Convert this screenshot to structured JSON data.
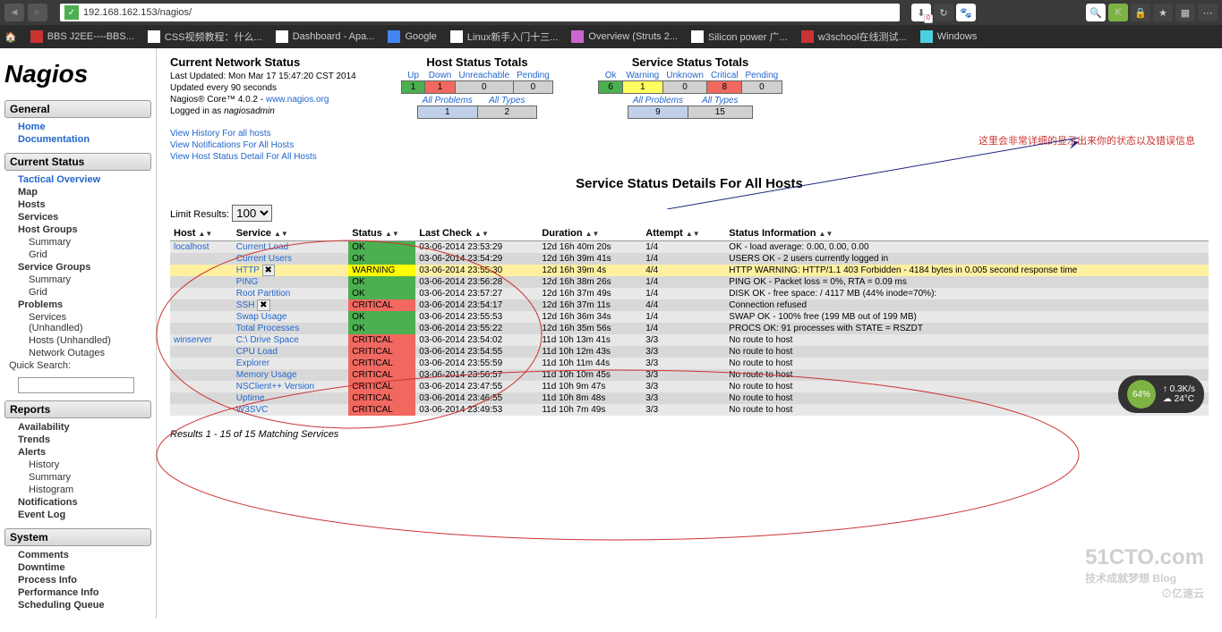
{
  "browser": {
    "url": "192.168.162.153/nagios/"
  },
  "bookmarks": [
    {
      "label": "BBS J2EE----BBS...",
      "color": "#cc3333"
    },
    {
      "label": "CSS视频教程：什么...",
      "color": "#fff"
    },
    {
      "label": "Dashboard - Apa...",
      "color": "#fff"
    },
    {
      "label": "Google",
      "color": "#4285f4"
    },
    {
      "label": "Linux新手入门十三...",
      "color": "#fff"
    },
    {
      "label": "Overview (Struts 2...",
      "color": "#cc66cc"
    },
    {
      "label": "Silicon power 广...",
      "color": "#fff"
    },
    {
      "label": "w3school在线测试...",
      "color": "#cc3333"
    },
    {
      "label": "Windows",
      "color": "#4dd0e1"
    }
  ],
  "logo": "Nagios",
  "sidebar": {
    "general": {
      "title": "General",
      "items": [
        "Home",
        "Documentation"
      ]
    },
    "current": {
      "title": "Current Status",
      "items": [
        "Tactical Overview",
        "Map",
        "Hosts",
        "Services",
        "Host Groups"
      ],
      "hg_sub": [
        "Summary",
        "Grid"
      ],
      "sg": "Service Groups",
      "sg_sub": [
        "Summary",
        "Grid"
      ],
      "problems": "Problems",
      "p_sub": [
        "Services (Unhandled)",
        "Hosts (Unhandled)",
        "Network Outages"
      ],
      "search": "Quick Search:"
    },
    "reports": {
      "title": "Reports",
      "items": [
        "Availability",
        "Trends",
        "Alerts"
      ],
      "a_sub": [
        "History",
        "Summary",
        "Histogram"
      ],
      "items2": [
        "Notifications",
        "Event Log"
      ]
    },
    "system": {
      "title": "System",
      "items": [
        "Comments",
        "Downtime",
        "Process Info",
        "Performance Info",
        "Scheduling Queue"
      ]
    }
  },
  "status": {
    "title": "Current Network Status",
    "updated": "Last Updated: Mon Mar 17 15:47:20 CST 2014",
    "interval": "Updated every 90 seconds",
    "version": "Nagios® Core™ 4.0.2 - ",
    "link": "www.nagios.org",
    "logged": "Logged in as ",
    "user": "nagiosadmin",
    "history": "View History For all hosts",
    "notif": "View Notifications For All Hosts",
    "detail": "View Host Status Detail For All Hosts"
  },
  "host_totals": {
    "title": "Host Status Totals",
    "headers": [
      "Up",
      "Down",
      "Unreachable",
      "Pending"
    ],
    "values": [
      "1",
      "1",
      "0",
      "0"
    ],
    "h2": [
      "All Problems",
      "All Types"
    ],
    "v2": [
      "1",
      "2"
    ]
  },
  "svc_totals": {
    "title": "Service Status Totals",
    "headers": [
      "Ok",
      "Warning",
      "Unknown",
      "Critical",
      "Pending"
    ],
    "values": [
      "6",
      "1",
      "0",
      "8",
      "0"
    ],
    "h2": [
      "All Problems",
      "All Types"
    ],
    "v2": [
      "9",
      "15"
    ]
  },
  "annotation": "这里会非常详细的显示出来你的状态以及错误信息",
  "page_title": "Service Status Details For All Hosts",
  "limit": {
    "label": "Limit Results:",
    "value": "100"
  },
  "columns": [
    "Host",
    "Service",
    "Status",
    "Last Check",
    "Duration",
    "Attempt",
    "Status Information"
  ],
  "rows": [
    {
      "host": "localhost",
      "svc": "Current Load",
      "st": "OK",
      "stc": "ok",
      "chk": "03-06-2014 23:53:29",
      "dur": "12d 16h 40m 20s",
      "att": "1/4",
      "info": "OK - load average: 0.00, 0.00, 0.00",
      "r": "even"
    },
    {
      "host": "",
      "svc": "Current Users",
      "st": "OK",
      "stc": "ok",
      "chk": "03-06-2014 23:54:29",
      "dur": "12d 16h 39m 41s",
      "att": "1/4",
      "info": "USERS OK - 2 users currently logged in",
      "r": "odd"
    },
    {
      "host": "",
      "svc": "HTTP",
      "st": "WARNING",
      "stc": "warn",
      "chk": "03-06-2014 23:55:30",
      "dur": "12d 16h 39m 4s",
      "att": "4/4",
      "info": "HTTP WARNING: HTTP/1.1 403 Forbidden - 4184 bytes in 0.005 second response time",
      "r": "warn",
      "icon": true
    },
    {
      "host": "",
      "svc": "PING",
      "st": "OK",
      "stc": "ok",
      "chk": "03-06-2014 23:56:28",
      "dur": "12d 16h 38m 26s",
      "att": "1/4",
      "info": "PING OK - Packet loss = 0%, RTA = 0.09 ms",
      "r": "odd"
    },
    {
      "host": "",
      "svc": "Root Partition",
      "st": "OK",
      "stc": "ok",
      "chk": "03-06-2014 23:57:27",
      "dur": "12d 16h 37m 49s",
      "att": "1/4",
      "info": "DISK OK - free space: / 4117 MB (44% inode=70%):",
      "r": "even"
    },
    {
      "host": "",
      "svc": "SSH",
      "st": "CRITICAL",
      "stc": "crit",
      "chk": "03-06-2014 23:54:17",
      "dur": "12d 16h 37m 11s",
      "att": "4/4",
      "info": "Connection refused",
      "r": "odd",
      "icon": true
    },
    {
      "host": "",
      "svc": "Swap Usage",
      "st": "OK",
      "stc": "ok",
      "chk": "03-06-2014 23:55:53",
      "dur": "12d 16h 36m 34s",
      "att": "1/4",
      "info": "SWAP OK - 100% free (199 MB out of 199 MB)",
      "r": "even"
    },
    {
      "host": "",
      "svc": "Total Processes",
      "st": "OK",
      "stc": "ok",
      "chk": "03-06-2014 23:55:22",
      "dur": "12d 16h 35m 56s",
      "att": "1/4",
      "info": "PROCS OK: 91 processes with STATE = RSZDT",
      "r": "odd"
    },
    {
      "host": "winserver",
      "svc": "C:\\ Drive Space",
      "st": "CRITICAL",
      "stc": "crit",
      "chk": "03-06-2014 23:54:02",
      "dur": "11d 10h 13m 41s",
      "att": "3/3",
      "info": "No route to host",
      "r": "even"
    },
    {
      "host": "",
      "svc": "CPU Load",
      "st": "CRITICAL",
      "stc": "crit",
      "chk": "03-06-2014 23:54:55",
      "dur": "11d 10h 12m 43s",
      "att": "3/3",
      "info": "No route to host",
      "r": "odd"
    },
    {
      "host": "",
      "svc": "Explorer",
      "st": "CRITICAL",
      "stc": "crit",
      "chk": "03-06-2014 23:55:59",
      "dur": "11d 10h 11m 44s",
      "att": "3/3",
      "info": "No route to host",
      "r": "even"
    },
    {
      "host": "",
      "svc": "Memory Usage",
      "st": "CRITICAL",
      "stc": "crit",
      "chk": "03-06-2014 23:56:57",
      "dur": "11d 10h 10m 45s",
      "att": "3/3",
      "info": "No route to host",
      "r": "odd"
    },
    {
      "host": "",
      "svc": "NSClient++ Version",
      "st": "CRITICAL",
      "stc": "crit",
      "chk": "03-06-2014 23:47:55",
      "dur": "11d 10h 9m 47s",
      "att": "3/3",
      "info": "No route to host",
      "r": "even"
    },
    {
      "host": "",
      "svc": "Uptime",
      "st": "CRITICAL",
      "stc": "crit",
      "chk": "03-06-2014 23:46:55",
      "dur": "11d 10h 8m 48s",
      "att": "3/3",
      "info": "No route to host",
      "r": "odd"
    },
    {
      "host": "",
      "svc": "W3SVC",
      "st": "CRITICAL",
      "stc": "crit",
      "chk": "03-06-2014 23:49:53",
      "dur": "11d 10h 7m 49s",
      "att": "3/3",
      "info": "No route to host",
      "r": "even"
    }
  ],
  "results_txt": "Results 1 - 15 of 15 Matching Services",
  "widget": {
    "pct": "64%",
    "speed": "0.3K/s",
    "temp": "24°C"
  }
}
